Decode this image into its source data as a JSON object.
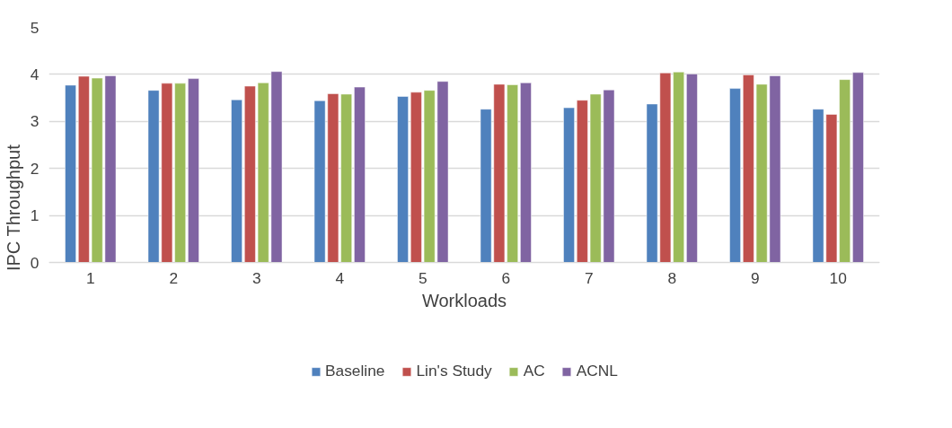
{
  "chart_data": {
    "type": "bar",
    "xlabel": "Workloads",
    "ylabel": "IPC Throughput",
    "categories": [
      "1",
      "2",
      "3",
      "4",
      "5",
      "6",
      "7",
      "8",
      "9",
      "10"
    ],
    "series": [
      {
        "name": "Baseline",
        "color": "#4f81bd",
        "values": [
          3.77,
          3.66,
          3.46,
          3.44,
          3.53,
          3.26,
          3.29,
          3.37,
          3.7,
          3.26
        ]
      },
      {
        "name": "Lin's Study",
        "color": "#c0504d",
        "values": [
          3.96,
          3.81,
          3.75,
          3.59,
          3.62,
          3.79,
          3.45,
          4.03,
          3.99,
          3.15
        ]
      },
      {
        "name": "AC",
        "color": "#9bbb59",
        "values": [
          3.92,
          3.81,
          3.82,
          3.58,
          3.66,
          3.78,
          3.58,
          4.05,
          3.79,
          3.89
        ]
      },
      {
        "name": "ACNL",
        "color": "#8064a2",
        "values": [
          3.97,
          3.91,
          4.06,
          3.73,
          3.85,
          3.82,
          3.67,
          4.01,
          3.97,
          4.04
        ]
      }
    ],
    "ylim": [
      0,
      5
    ],
    "yticks": [
      0,
      1,
      2,
      3,
      4,
      5
    ],
    "grid": "y",
    "legend": "bottom"
  }
}
